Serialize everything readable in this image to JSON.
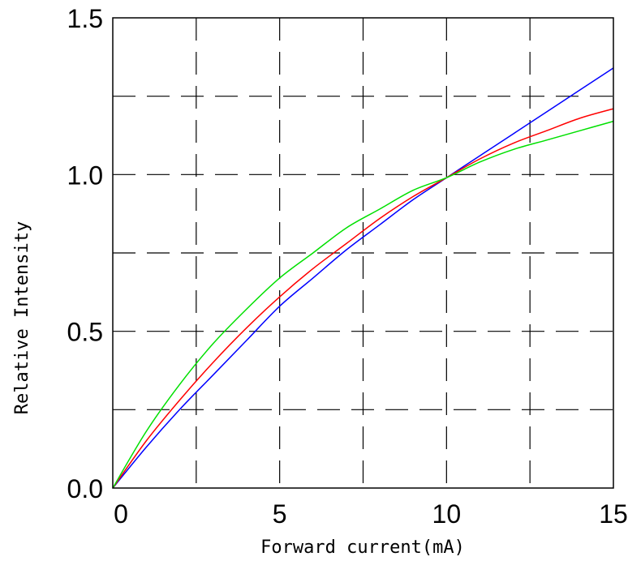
{
  "chart_data": {
    "type": "line",
    "title": "",
    "xlabel": "Forward current(mA)",
    "ylabel": "Relative Intensity",
    "xlim": [
      0,
      15
    ],
    "ylim": [
      0,
      1.5
    ],
    "xticks": [
      0,
      5,
      10,
      15
    ],
    "xtick_labels": [
      "0",
      "5",
      "10",
      "15"
    ],
    "yticks": [
      0,
      0.5,
      1.0,
      1.5
    ],
    "ytick_labels": [
      "0.0",
      "0.5",
      "1.0",
      "1.5"
    ],
    "grid": {
      "style": "dashed",
      "x": [
        2.5,
        5,
        7.5,
        10,
        12.5
      ],
      "y": [
        0.25,
        0.5,
        0.75,
        1.0,
        1.25
      ]
    },
    "series": [
      {
        "color": "#0000ff",
        "x": [
          0,
          1,
          2,
          3,
          4,
          5,
          6,
          7,
          8,
          9,
          10,
          11,
          12,
          13,
          14,
          15
        ],
        "y": [
          0,
          0.13,
          0.25,
          0.36,
          0.47,
          0.58,
          0.67,
          0.76,
          0.84,
          0.92,
          0.99,
          1.06,
          1.13,
          1.2,
          1.27,
          1.34
        ]
      },
      {
        "color": "#ff0000",
        "x": [
          0,
          1,
          2,
          3,
          4,
          5,
          6,
          7,
          8,
          9,
          10,
          11,
          12,
          13,
          14,
          15
        ],
        "y": [
          0,
          0.15,
          0.28,
          0.4,
          0.51,
          0.61,
          0.7,
          0.78,
          0.86,
          0.93,
          0.99,
          1.05,
          1.1,
          1.14,
          1.18,
          1.21
        ]
      },
      {
        "color": "#00e000",
        "x": [
          0,
          1,
          2,
          3,
          4,
          5,
          6,
          7,
          8,
          9,
          10,
          11,
          12,
          13,
          14,
          15
        ],
        "y": [
          0,
          0.18,
          0.33,
          0.46,
          0.57,
          0.67,
          0.75,
          0.83,
          0.89,
          0.95,
          0.99,
          1.04,
          1.08,
          1.11,
          1.14,
          1.17
        ]
      }
    ]
  }
}
